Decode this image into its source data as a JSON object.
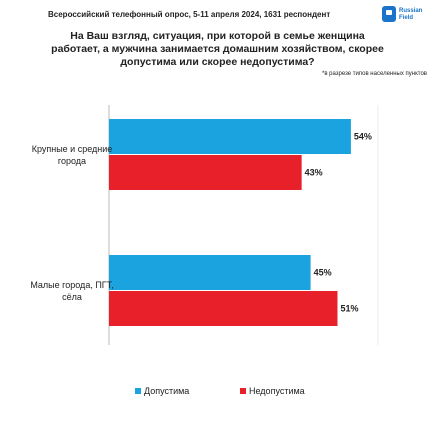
{
  "header": {
    "survey": "Всероссийский телефонный опрос, 5-11 апреля 2024, 1631 респондент",
    "logo": "Russian Field"
  },
  "chart_data": {
    "type": "hbar",
    "title": "На Ваш взгляд, ситуация, при которой в семье женщина работает, а мужчина занимается домашним хозяйством, скорее допустима или скорее недопустима?",
    "subtitle": "*в разрезе типов населенных пунктов",
    "categories": [
      "Крупные и средние города",
      "Малые города, ПГТ, сёла"
    ],
    "series": [
      {
        "name": "Допустима",
        "color": "#1ba3e0",
        "values": [
          54,
          45
        ],
        "value_labels": [
          "54%",
          "45%"
        ]
      },
      {
        "name": "Недопустима",
        "color": "#e8202a",
        "values": [
          43,
          51
        ],
        "value_labels": [
          "43%",
          "51%"
        ]
      }
    ]
  }
}
